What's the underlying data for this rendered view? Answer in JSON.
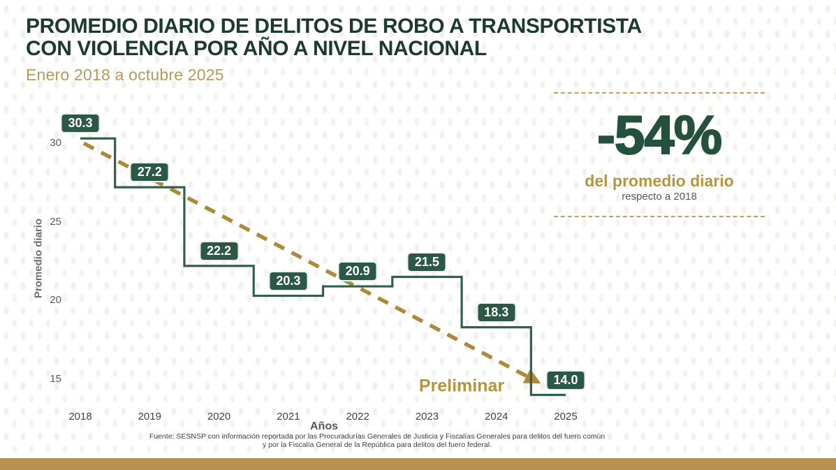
{
  "header": {
    "title_line1": "PROMEDIO DIARIO DE DELITOS DE ROBO A TRANSPORTISTA",
    "title_line2": "CON VIOLENCIA POR AÑO A NIVEL NACIONAL",
    "subtitle": "Enero 2018 a octubre 2025"
  },
  "chart_data": {
    "type": "step",
    "categories": [
      "2018",
      "2019",
      "2020",
      "2021",
      "2022",
      "2023",
      "2024",
      "2025"
    ],
    "values": [
      30.3,
      27.2,
      22.2,
      20.3,
      20.9,
      21.5,
      18.3,
      14.0
    ],
    "title": "",
    "xlabel": "Años",
    "ylabel": "Promedio diario",
    "y_ticks": [
      30,
      25,
      20,
      15
    ],
    "ylim": [
      13,
      32
    ],
    "grid": false,
    "legend": "none",
    "annotation": "Preliminar",
    "trend_arrow": "dashed gold arrow from 2018 value down to 2025 value"
  },
  "highlight": {
    "value": "-54%",
    "label": "del promedio diario",
    "sublabel": "respecto a 2018"
  },
  "footer": {
    "source_line1": "Fuente: SESNSP con información reportada por las Procuradurías Generales de Justicia y Fiscalías Generales para delitos del fuero común",
    "source_line2": "y por la Fiscalía General de la República para delitos del fuero federal."
  },
  "colors": {
    "title_green": "#1c3a2d",
    "box_green": "#2b5847",
    "line_green": "#31604f",
    "arrow_gold": "#ab8a3c",
    "accent_gold": "#b6953f",
    "subtitle_gold": "#b59a5d",
    "bar_gold": "#b7914e",
    "tick_gray": "#58595b"
  }
}
